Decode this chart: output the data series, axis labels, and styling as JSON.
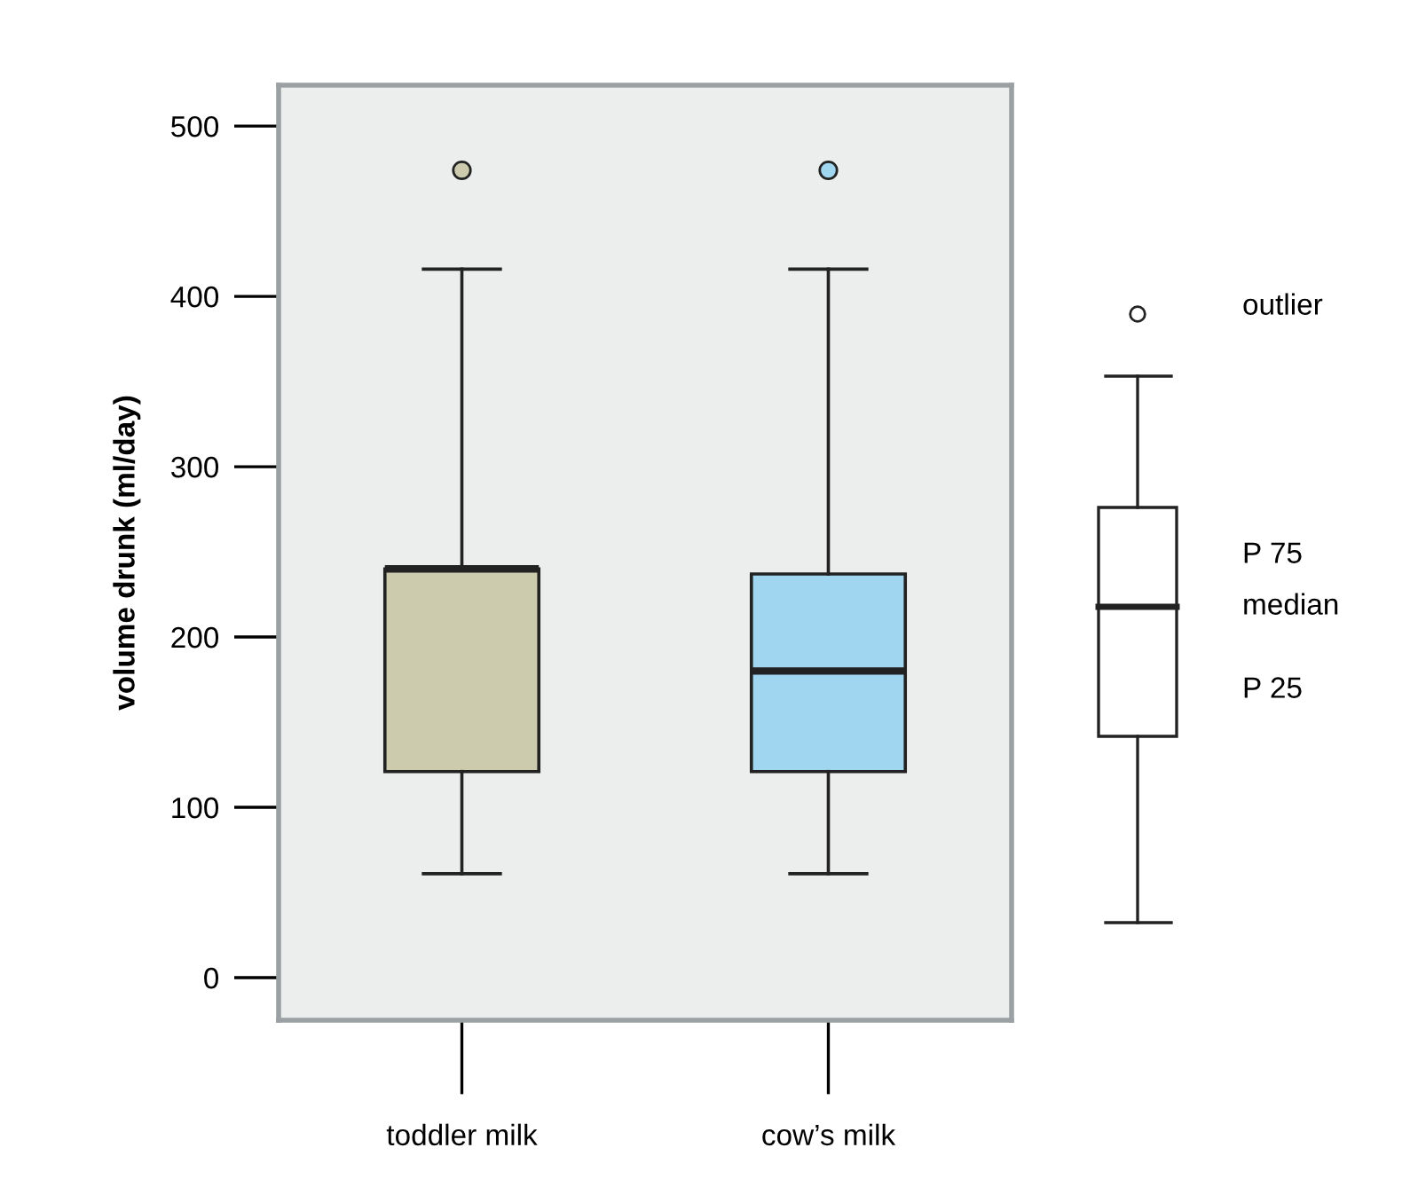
{
  "chart_data": {
    "type": "box",
    "ylabel": "volume drunk (ml/day)",
    "categories": [
      "toddler milk",
      "cow’s milk"
    ],
    "series": [
      {
        "color": "#cccbad",
        "boxes": [
          {
            "low": 61,
            "q1": 121,
            "median": 240,
            "q3": 240,
            "high": 416,
            "outliers": [
              474
            ]
          },
          null
        ]
      },
      {
        "color": "#a0d6f0",
        "boxes": [
          null,
          {
            "low": 61,
            "q1": 121,
            "median": 180,
            "q3": 237,
            "high": 416,
            "outliers": [
              474
            ]
          }
        ]
      }
    ],
    "ylim": [
      -25,
      524
    ],
    "yticks": [
      0,
      100,
      200,
      300,
      400,
      500
    ],
    "grid": false,
    "annotations": [
      "outlier",
      "P 75",
      "median",
      "P 25"
    ]
  }
}
